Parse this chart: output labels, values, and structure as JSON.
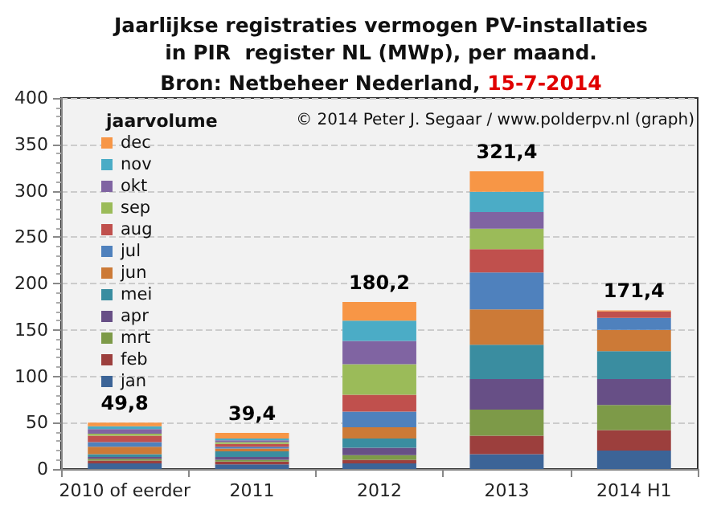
{
  "chart_data": {
    "type": "bar",
    "stacked": true,
    "title": "Jaarlijkse registraties vermogen PV-installaties\nin PIR  register NL (MWp), per maand.",
    "subtitle": "Bron: Netbeheer Nederland, 15-7-2014",
    "annotations": [
      "© 2014 Peter J. Segaar / www.polderpv.nl (graph)"
    ],
    "legend_title": "jaarvolume",
    "categories": [
      "2010 of eerder",
      "2011",
      "2012",
      "2013",
      "2014 H1"
    ],
    "series": [
      {
        "name": "jan",
        "color": "#3c6497",
        "values": [
          6,
          5,
          6,
          16,
          20
        ]
      },
      {
        "name": "feb",
        "color": "#9c3f3d",
        "values": [
          3,
          3,
          4,
          20,
          22
        ]
      },
      {
        "name": "mrt",
        "color": "#7d9a48",
        "values": [
          2,
          2,
          5,
          28,
          27
        ]
      },
      {
        "name": "apr",
        "color": "#674f86",
        "values": [
          2,
          3,
          8,
          33,
          28
        ]
      },
      {
        "name": "mei",
        "color": "#3a8da0",
        "values": [
          3,
          6,
          10,
          37,
          30
        ]
      },
      {
        "name": "jun",
        "color": "#cc7a37",
        "values": [
          8,
          3,
          12,
          38,
          23
        ]
      },
      {
        "name": "jul",
        "color": "#4f81bd",
        "values": [
          5,
          2,
          17,
          40,
          13
        ]
      },
      {
        "name": "aug",
        "color": "#c0504d",
        "values": [
          7,
          3,
          18,
          25,
          7
        ]
      },
      {
        "name": "sep",
        "color": "#9bbb59",
        "values": [
          2,
          2,
          33,
          22,
          0
        ]
      },
      {
        "name": "okt",
        "color": "#8064a2",
        "values": [
          5,
          2,
          25,
          18,
          0
        ]
      },
      {
        "name": "nov",
        "color": "#4bacc6",
        "values": [
          3,
          2,
          22,
          22,
          0
        ]
      },
      {
        "name": "dec",
        "color": "#f79646",
        "values": [
          4,
          6,
          20,
          22,
          1
        ]
      }
    ],
    "totals": [
      "49,8",
      "39,4",
      "180,2",
      "321,4",
      "171,4"
    ],
    "ylim": [
      0,
      400
    ],
    "yticks": [
      0,
      50,
      100,
      150,
      200,
      250,
      300,
      350,
      400
    ],
    "grid": "y",
    "legend": "left"
  }
}
